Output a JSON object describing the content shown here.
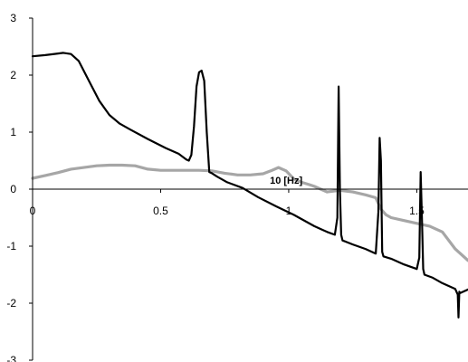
{
  "chart_data": {
    "type": "line",
    "title": "",
    "xlabel": "10 [Hz]",
    "ylabel": "",
    "xlim": [
      0,
      1.7
    ],
    "ylim": [
      -3,
      3
    ],
    "x_ticks": [
      0,
      0.5,
      1,
      1.5
    ],
    "x_tick_labels": [
      "0",
      "0.5",
      "1",
      "1.5"
    ],
    "y_ticks": [
      3,
      2,
      1,
      0,
      -1,
      -2,
      -3
    ],
    "y_tick_labels": [
      "3",
      "2",
      "1",
      "0",
      "-1",
      "-2",
      "-3"
    ],
    "grid": false,
    "legend": "none",
    "series": [
      {
        "color": "#000000",
        "x": [
          0,
          0.05,
          0.1,
          0.12,
          0.15,
          0.18,
          0.22,
          0.26,
          0.3,
          0.34,
          0.38,
          0.45,
          0.52,
          0.57,
          0.6,
          0.61,
          0.62,
          0.63,
          0.64,
          0.65,
          0.66,
          0.67,
          0.68,
          0.69,
          0.7,
          0.72,
          0.76,
          0.82,
          0.88,
          0.95,
          1.02,
          1.1,
          1.15,
          1.18,
          1.19,
          1.195,
          1.2,
          1.205,
          1.21,
          1.25,
          1.3,
          1.34,
          1.35,
          1.355,
          1.36,
          1.365,
          1.37,
          1.4,
          1.45,
          1.5,
          1.51,
          1.515,
          1.52,
          1.525,
          1.53,
          1.56,
          1.6,
          1.65,
          1.66,
          1.663,
          1.666,
          1.67,
          1.7
        ],
        "y": [
          2.33,
          2.35,
          2.38,
          2.39,
          2.37,
          2.25,
          1.9,
          1.55,
          1.3,
          1.15,
          1.05,
          0.88,
          0.72,
          0.62,
          0.52,
          0.5,
          0.6,
          1.1,
          1.8,
          2.05,
          2.08,
          1.9,
          1.0,
          0.3,
          0.28,
          0.22,
          0.12,
          0.02,
          -0.14,
          -0.3,
          -0.45,
          -0.65,
          -0.75,
          -0.8,
          -0.5,
          1.8,
          0.0,
          -0.8,
          -0.9,
          -0.97,
          -1.05,
          -1.13,
          -0.4,
          0.9,
          0.5,
          -1.1,
          -1.18,
          -1.22,
          -1.32,
          -1.4,
          -1.2,
          0.3,
          -0.5,
          -1.4,
          -1.5,
          -1.55,
          -1.65,
          -1.75,
          -1.85,
          -2.25,
          -1.8,
          -1.82,
          -1.76
        ]
      },
      {
        "color": "#a6a6a6",
        "x": [
          0,
          0.05,
          0.1,
          0.15,
          0.2,
          0.25,
          0.3,
          0.35,
          0.4,
          0.45,
          0.5,
          0.55,
          0.6,
          0.65,
          0.7,
          0.75,
          0.8,
          0.85,
          0.9,
          0.93,
          0.96,
          0.99,
          1.02,
          1.05,
          1.08,
          1.1,
          1.15,
          1.2,
          1.25,
          1.3,
          1.34,
          1.36,
          1.38,
          1.4,
          1.45,
          1.5,
          1.55,
          1.6,
          1.65,
          1.7
        ],
        "y": [
          0.19,
          0.24,
          0.29,
          0.35,
          0.38,
          0.41,
          0.42,
          0.42,
          0.41,
          0.35,
          0.33,
          0.33,
          0.33,
          0.33,
          0.32,
          0.28,
          0.25,
          0.25,
          0.27,
          0.32,
          0.38,
          0.32,
          0.18,
          0.12,
          0.08,
          0.05,
          -0.05,
          -0.02,
          -0.05,
          -0.1,
          -0.15,
          -0.35,
          -0.45,
          -0.5,
          -0.55,
          -0.6,
          -0.65,
          -0.75,
          -1.05,
          -1.25
        ]
      }
    ]
  }
}
